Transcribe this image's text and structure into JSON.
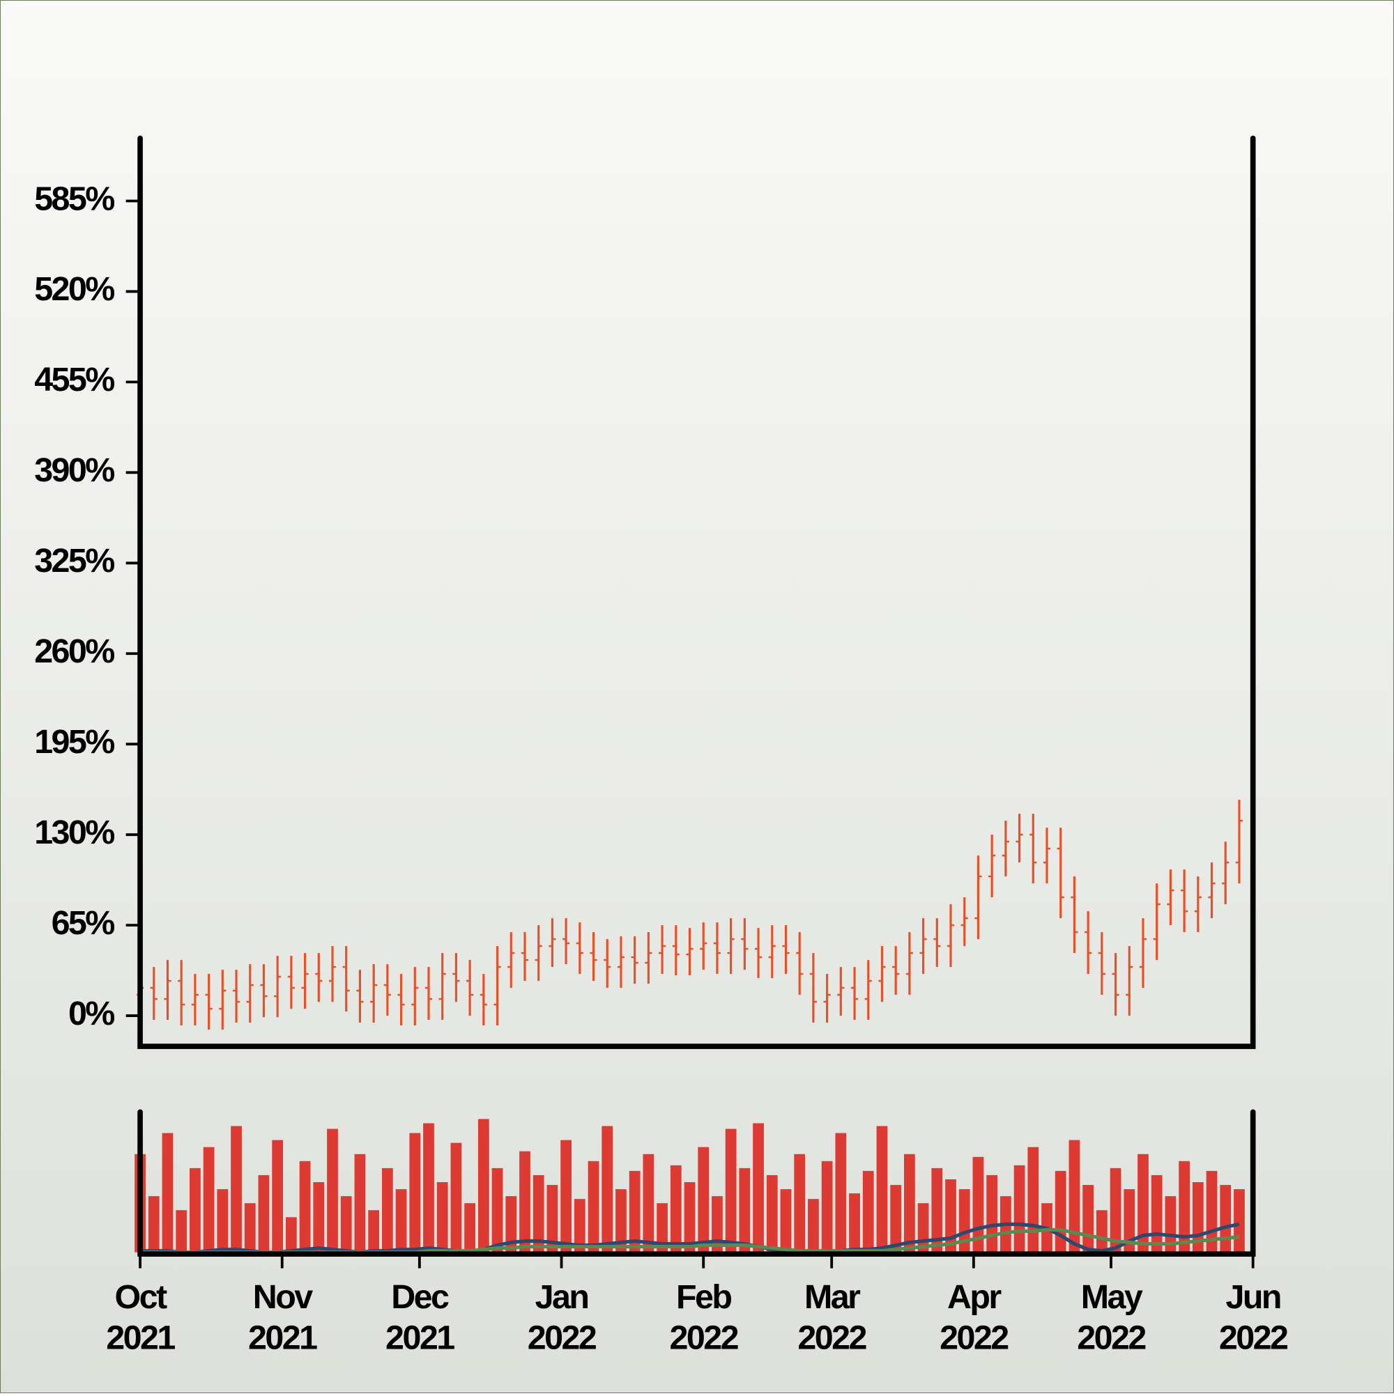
{
  "chart_data": {
    "type": "ohlc",
    "x": [
      0,
      3,
      6,
      9,
      12,
      15,
      18,
      21,
      24,
      27,
      30,
      33,
      36,
      39,
      42,
      45,
      48,
      51,
      54,
      57,
      60,
      63,
      66,
      69,
      72,
      75,
      78,
      81,
      84,
      87,
      90,
      93,
      96,
      99,
      102,
      105,
      108,
      111,
      114,
      117,
      120,
      123,
      126,
      129,
      132,
      135,
      138,
      141,
      144,
      147,
      150,
      153,
      156,
      159,
      162,
      165,
      168,
      171,
      174,
      177,
      180,
      183,
      186,
      189,
      192,
      195,
      198,
      201,
      204,
      207,
      210,
      213,
      216,
      219,
      222,
      225,
      228,
      231,
      234,
      237,
      240
    ],
    "open": [
      15,
      20,
      12,
      25,
      8,
      15,
      5,
      18,
      10,
      22,
      14,
      28,
      20,
      30,
      25,
      35,
      18,
      10,
      22,
      15,
      8,
      20,
      12,
      30,
      25,
      15,
      8,
      35,
      45,
      40,
      50,
      55,
      52,
      45,
      40,
      35,
      42,
      38,
      45,
      50,
      44,
      48,
      52,
      45,
      55,
      48,
      42,
      50,
      45,
      30,
      10,
      15,
      20,
      12,
      25,
      35,
      30,
      45,
      55,
      50,
      65,
      70,
      100,
      115,
      125,
      130,
      110,
      120,
      85,
      60,
      45,
      30,
      15,
      35,
      55,
      80,
      90,
      75,
      85,
      95,
      110
    ],
    "high": [
      35,
      35,
      40,
      40,
      30,
      30,
      33,
      33,
      37,
      37,
      43,
      43,
      45,
      45,
      50,
      50,
      33,
      37,
      37,
      30,
      35,
      35,
      45,
      45,
      40,
      30,
      50,
      60,
      60,
      65,
      70,
      70,
      67,
      60,
      55,
      57,
      57,
      60,
      65,
      65,
      63,
      67,
      67,
      70,
      70,
      63,
      65,
      65,
      60,
      45,
      30,
      35,
      35,
      40,
      50,
      50,
      60,
      70,
      70,
      80,
      85,
      115,
      130,
      140,
      145,
      145,
      135,
      135,
      100,
      75,
      60,
      45,
      50,
      70,
      95,
      105,
      105,
      100,
      110,
      125,
      155
    ],
    "low": [
      0,
      -3,
      -3,
      -7,
      -7,
      -10,
      -10,
      -5,
      -5,
      -1,
      -1,
      5,
      5,
      10,
      10,
      3,
      -5,
      -5,
      0,
      -7,
      -7,
      -3,
      -3,
      10,
      0,
      -7,
      -7,
      20,
      25,
      25,
      35,
      37,
      30,
      25,
      20,
      20,
      23,
      23,
      30,
      29,
      29,
      33,
      30,
      30,
      33,
      27,
      27,
      30,
      15,
      -5,
      -5,
      0,
      -3,
      -3,
      10,
      15,
      15,
      30,
      35,
      35,
      50,
      55,
      85,
      100,
      110,
      95,
      95,
      70,
      45,
      30,
      15,
      0,
      0,
      20,
      40,
      65,
      60,
      60,
      70,
      80,
      95
    ],
    "close": [
      20,
      12,
      25,
      8,
      15,
      5,
      18,
      10,
      22,
      14,
      28,
      20,
      30,
      25,
      35,
      18,
      10,
      22,
      15,
      8,
      20,
      12,
      30,
      25,
      15,
      8,
      35,
      45,
      40,
      50,
      55,
      52,
      45,
      40,
      35,
      42,
      38,
      45,
      50,
      44,
      48,
      52,
      45,
      55,
      48,
      42,
      50,
      45,
      30,
      10,
      15,
      20,
      12,
      25,
      35,
      30,
      45,
      55,
      50,
      65,
      70,
      100,
      115,
      125,
      130,
      110,
      120,
      85,
      60,
      45,
      30,
      15,
      35,
      55,
      80,
      90,
      75,
      85,
      95,
      110,
      140
    ],
    "color": "#e8502a",
    "xlim": [
      0,
      243
    ],
    "xticks": [
      {
        "value": 0,
        "label": "Oct 2021"
      },
      {
        "value": 31,
        "label": "Nov 2021"
      },
      {
        "value": 61,
        "label": "Dec 2021"
      },
      {
        "value": 92,
        "label": "Jan 2022"
      },
      {
        "value": 123,
        "label": "Feb 2022"
      },
      {
        "value": 151,
        "label": "Mar 2022"
      },
      {
        "value": 182,
        "label": "Apr 2022"
      },
      {
        "value": 212,
        "label": "May 2022"
      },
      {
        "value": 243,
        "label": "Jun 2022"
      }
    ],
    "ylim": [
      -22,
      630
    ],
    "yticks": [
      {
        "value": 0,
        "label": "0%"
      },
      {
        "value": 65,
        "label": "65%"
      },
      {
        "value": 130,
        "label": "130%"
      },
      {
        "value": 195,
        "label": "195%"
      },
      {
        "value": 260,
        "label": "260%"
      },
      {
        "value": 325,
        "label": "325%"
      },
      {
        "value": 390,
        "label": "390%"
      },
      {
        "value": 455,
        "label": "455%"
      },
      {
        "value": 520,
        "label": "520%"
      },
      {
        "value": 585,
        "label": "585%"
      }
    ],
    "volume": {
      "color": "#dd3a33",
      "ylim": [
        0,
        100
      ],
      "values": [
        70,
        40,
        85,
        30,
        60,
        75,
        45,
        90,
        35,
        55,
        80,
        25,
        65,
        50,
        88,
        40,
        70,
        30,
        60,
        45,
        85,
        92,
        50,
        78,
        35,
        95,
        60,
        40,
        72,
        55,
        48,
        80,
        38,
        65,
        90,
        45,
        58,
        70,
        35,
        62,
        50,
        75,
        40,
        88,
        60,
        92,
        55,
        45,
        70,
        38,
        65,
        85,
        42,
        58,
        90,
        48,
        70,
        35,
        60,
        52,
        45,
        68,
        55,
        40,
        62,
        75,
        35,
        58,
        80,
        48,
        30,
        60,
        45,
        70,
        55,
        40,
        65,
        50,
        58,
        48,
        45
      ],
      "lines": [
        {
          "color": "#2c4a6e",
          "values": [
            1,
            1,
            1,
            0,
            0,
            1,
            2,
            2,
            1,
            0,
            0,
            1,
            2,
            3,
            2,
            1,
            0,
            1,
            1,
            2,
            2,
            3,
            2,
            1,
            0,
            2,
            5,
            7,
            8,
            8,
            7,
            6,
            5,
            5,
            6,
            7,
            8,
            7,
            6,
            6,
            6,
            7,
            8,
            7,
            6,
            4,
            2,
            1,
            0,
            0,
            0,
            1,
            2,
            2,
            3,
            5,
            7,
            8,
            9,
            10,
            14,
            17,
            19,
            20,
            20,
            19,
            17,
            12,
            6,
            2,
            1,
            3,
            8,
            12,
            13,
            12,
            11,
            12,
            15,
            18,
            20
          ]
        },
        {
          "color": "#5a8a50",
          "values": [
            0,
            0,
            0,
            0,
            0,
            0,
            0,
            0,
            0,
            0,
            0,
            0,
            0,
            0,
            0,
            0,
            0,
            0,
            0,
            0,
            0,
            1,
            1,
            1,
            1,
            2,
            3,
            3,
            4,
            4,
            4,
            4,
            4,
            4,
            4,
            4,
            4,
            4,
            4,
            4,
            4,
            5,
            5,
            5,
            5,
            4,
            3,
            2,
            1,
            1,
            1,
            1,
            1,
            1,
            1,
            2,
            3,
            4,
            5,
            6,
            8,
            10,
            12,
            14,
            15,
            15,
            16,
            16,
            14,
            12,
            10,
            8,
            7,
            6,
            6,
            6,
            7,
            8,
            9,
            10,
            11
          ]
        }
      ]
    }
  }
}
